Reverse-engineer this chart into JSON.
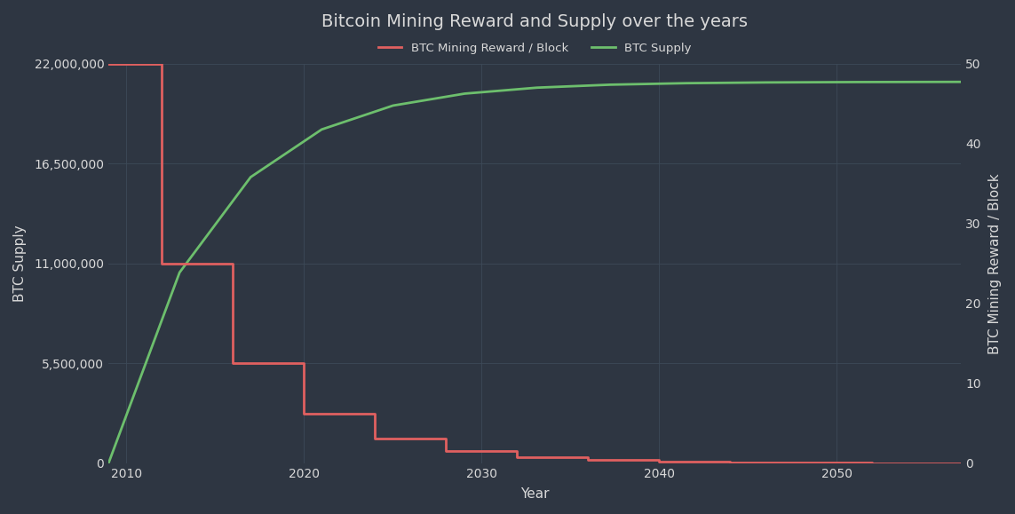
{
  "title": "Bitcoin Mining Reward and Supply over the years",
  "xlabel": "Year",
  "ylabel_left": "BTC Supply",
  "ylabel_right": "BTC Mining Reward / Block",
  "background_color": "#2e3642",
  "plot_background_color": "#2e3642",
  "text_color": "#d9d9d9",
  "grid_color": "#3d4a58",
  "line_supply_color": "#6dbf6d",
  "line_reward_color": "#e06060",
  "legend_label_reward": "BTC Mining Reward / Block",
  "legend_label_supply": "BTC Supply",
  "halving_years": [
    2009,
    2012,
    2016,
    2020,
    2024,
    2028,
    2032,
    2036,
    2040,
    2044,
    2048,
    2052,
    2056
  ],
  "halving_rewards": [
    50,
    25,
    12.5,
    6.25,
    3.125,
    1.5625,
    0.78125,
    0.390625,
    0.1953125,
    0.09765625,
    0.048828125,
    0.0244140625,
    0.01220703125
  ],
  "ylim_left": [
    0,
    22000000
  ],
  "ylim_right": [
    0,
    50
  ],
  "xlim": [
    2009,
    2057
  ],
  "yticks_left": [
    0,
    5500000,
    11000000,
    16500000,
    22000000
  ],
  "ytick_labels_left": [
    "0",
    "5,500,000",
    "11,000,000",
    "16,500,000",
    "22,000,000"
  ],
  "yticks_right": [
    0,
    10,
    20,
    30,
    40,
    50
  ],
  "xticks": [
    2010,
    2020,
    2030,
    2040,
    2050
  ],
  "title_fontsize": 14,
  "axis_label_fontsize": 11,
  "tick_fontsize": 10
}
